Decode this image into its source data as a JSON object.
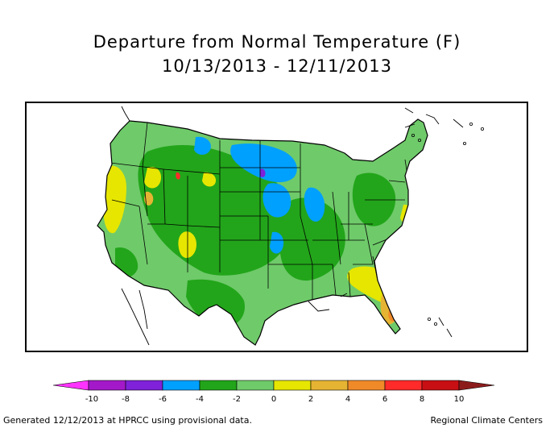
{
  "title": "Departure from Normal Temperature (F)",
  "subtitle": "10/13/2013 - 12/11/2013",
  "legend": {
    "bins": [
      {
        "low": -12,
        "high": -10,
        "color": "#ff33ff"
      },
      {
        "low": -10,
        "high": -8,
        "color": "#a319c9"
      },
      {
        "low": -8,
        "high": -6,
        "color": "#7f22d9"
      },
      {
        "low": -6,
        "high": -4,
        "color": "#00a0ff"
      },
      {
        "low": -4,
        "high": -2,
        "color": "#22a51a"
      },
      {
        "low": -2,
        "high": 0,
        "color": "#6fca6a"
      },
      {
        "low": 0,
        "high": 2,
        "color": "#e6e600"
      },
      {
        "low": 2,
        "high": 4,
        "color": "#e6b433"
      },
      {
        "low": 4,
        "high": 6,
        "color": "#f08a28"
      },
      {
        "low": 6,
        "high": 8,
        "color": "#ff2a2a"
      },
      {
        "low": 8,
        "high": 10,
        "color": "#c80f14"
      },
      {
        "low": 10,
        "high": 12,
        "color": "#8c1c1c"
      }
    ],
    "tick_labels": [
      "-10",
      "-8",
      "-6",
      "-4",
      "-2",
      "0",
      "2",
      "4",
      "6",
      "8",
      "10"
    ]
  },
  "map_colors": {
    "base": "#6fca6a",
    "cool": "#22a51a",
    "cold": "#00a0ff",
    "coldest": "#7f22d9",
    "warm": "#e6e600",
    "warmer": "#e6b433",
    "hot": "#f08a28",
    "hottest": "#ff2a2a",
    "state_lines": "#000000"
  },
  "footer": {
    "left": "Generated 12/12/2013 at HPRCC using provisional data.",
    "right": "Regional Climate Centers"
  }
}
